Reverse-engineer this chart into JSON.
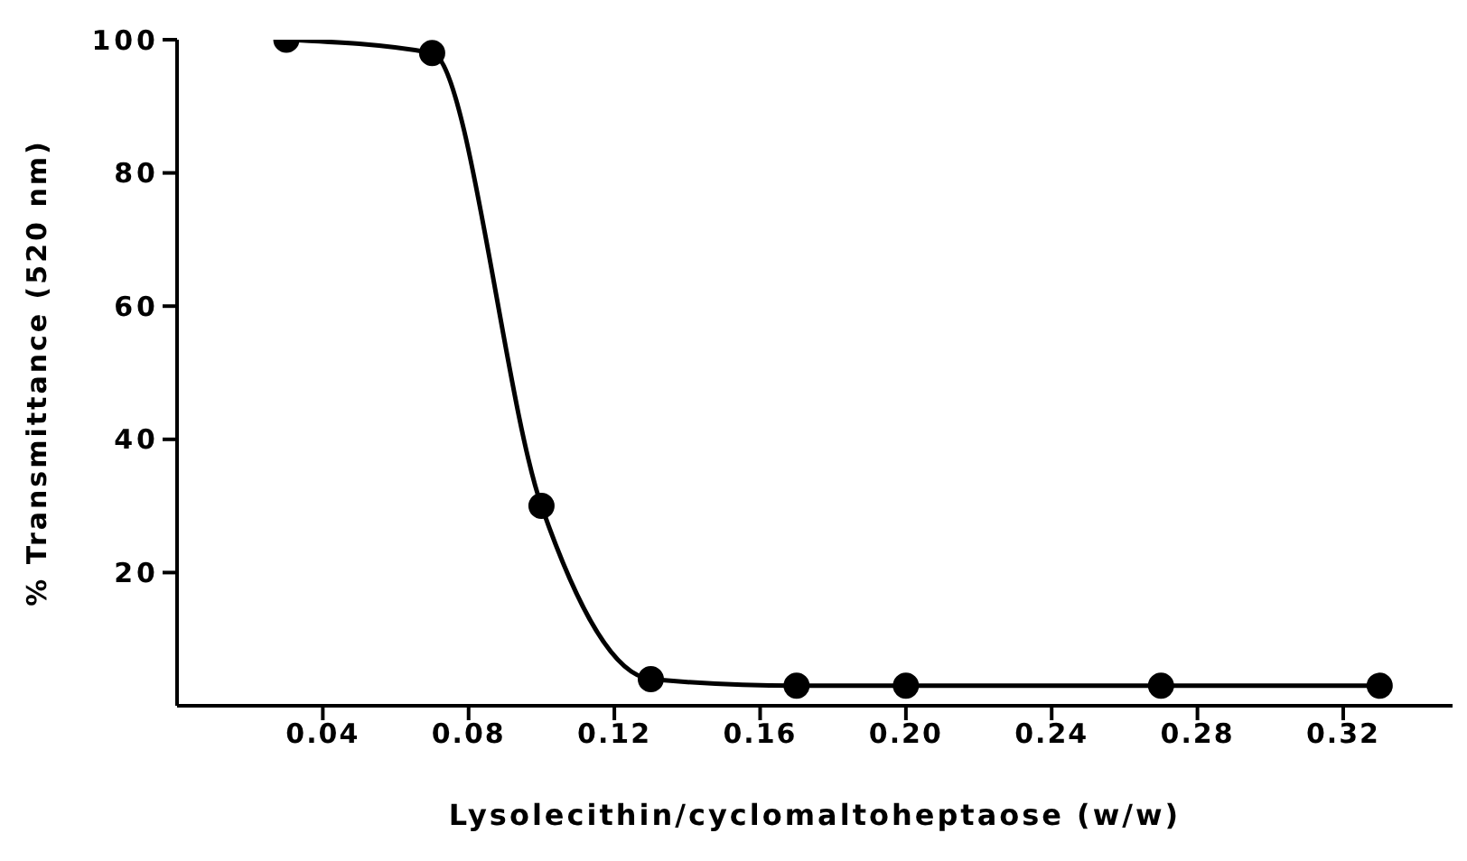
{
  "chart_data": {
    "type": "line",
    "xlabel": "Lysolecithin/cyclomaltoheptaose (w/w)",
    "ylabel": "% Transmittance (520 nm)",
    "x": [
      0.03,
      0.07,
      0.1,
      0.13,
      0.17,
      0.2,
      0.27,
      0.33
    ],
    "series": [
      {
        "color": "#000000",
        "values": [
          100,
          98,
          30,
          4,
          3,
          3,
          3,
          3
        ]
      }
    ],
    "xlim": [
      0,
      0.35
    ],
    "xticks": [
      {
        "value": 0.04,
        "label": "0.04"
      },
      {
        "value": 0.08,
        "label": "0.08"
      },
      {
        "value": 0.12,
        "label": "0.12"
      },
      {
        "value": 0.16,
        "label": "0.16"
      },
      {
        "value": 0.2,
        "label": "0.20"
      },
      {
        "value": 0.24,
        "label": "0.24"
      },
      {
        "value": 0.28,
        "label": "0.28"
      },
      {
        "value": 0.32,
        "label": "0.32"
      }
    ],
    "ylim": [
      0,
      100
    ],
    "yticks": [
      20,
      40,
      60,
      80,
      100
    ],
    "marker": "circle",
    "line_style": "solid"
  }
}
